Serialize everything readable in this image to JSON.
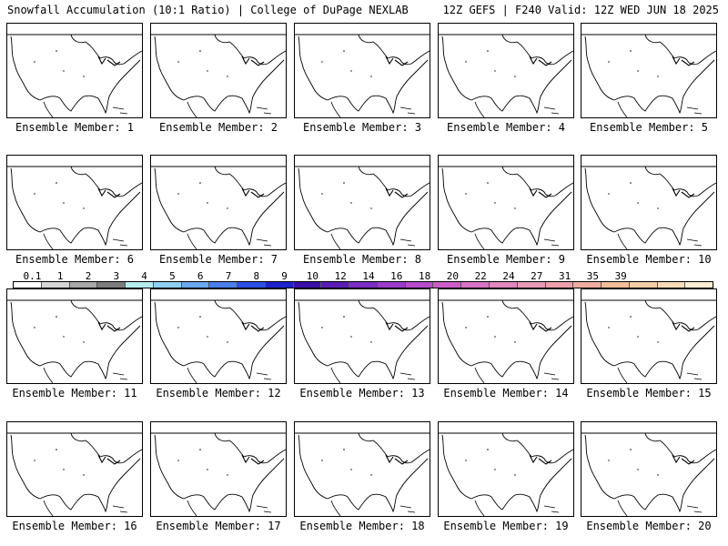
{
  "header": {
    "title": "Snowfall Accumulation (10:1 Ratio) | College of DuPage NEXLAB",
    "run_info": "12Z GEFS | F240 Valid: 12Z WED JUN 18 2025"
  },
  "panels": [
    {
      "caption": "Ensemble Member: 1"
    },
    {
      "caption": "Ensemble Member: 2"
    },
    {
      "caption": "Ensemble Member: 3"
    },
    {
      "caption": "Ensemble Member: 4"
    },
    {
      "caption": "Ensemble Member: 5"
    },
    {
      "caption": "Ensemble Member: 6"
    },
    {
      "caption": "Ensemble Member: 7"
    },
    {
      "caption": "Ensemble Member: 8"
    },
    {
      "caption": "Ensemble Member: 9"
    },
    {
      "caption": "Ensemble Member: 10"
    },
    {
      "caption": "Ensemble Member: 11"
    },
    {
      "caption": "Ensemble Member: 12"
    },
    {
      "caption": "Ensemble Member: 13"
    },
    {
      "caption": "Ensemble Member: 14"
    },
    {
      "caption": "Ensemble Member: 15"
    },
    {
      "caption": "Ensemble Member: 16"
    },
    {
      "caption": "Ensemble Member: 17"
    },
    {
      "caption": "Ensemble Member: 18"
    },
    {
      "caption": "Ensemble Member: 19"
    },
    {
      "caption": "Ensemble Member: 20"
    }
  ],
  "colorbar": {
    "labels": [
      "0.1",
      "1",
      "2",
      "3",
      "4",
      "5",
      "6",
      "7",
      "8",
      "9",
      "10",
      "12",
      "14",
      "16",
      "18",
      "20",
      "22",
      "24",
      "27",
      "31",
      "35",
      "39"
    ],
    "colors": [
      "#ffffff",
      "#d6d6d6",
      "#a8a8a8",
      "#7c7c7c",
      "#b4ecee",
      "#8fd0f4",
      "#6aa8f0",
      "#4a7eec",
      "#2c4ee6",
      "#1e22cc",
      "#3a10a8",
      "#5a1cb4",
      "#7a2cc4",
      "#9a3ccc",
      "#b84ccc",
      "#cc5cc8",
      "#d872c4",
      "#e088bc",
      "#e69ab6",
      "#ec9eaa",
      "#f0aca0",
      "#f2bc98",
      "#f4cca4",
      "#f8dcb8",
      "#fcecd4"
    ]
  }
}
